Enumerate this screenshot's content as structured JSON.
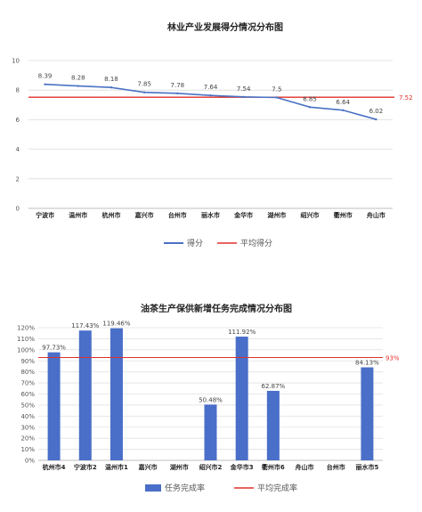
{
  "chart_data": [
    {
      "type": "line",
      "title": "林业产业发展得分情况分布图",
      "categories": [
        "宁波市",
        "温州市",
        "杭州市",
        "嘉兴市",
        "台州市",
        "丽水市",
        "金华市",
        "湖州市",
        "绍兴市",
        "衢州市",
        "舟山市"
      ],
      "series": [
        {
          "name": "得分",
          "values": [
            8.39,
            8.28,
            8.18,
            7.85,
            7.78,
            7.64,
            7.54,
            7.5,
            6.85,
            6.64,
            6.02
          ],
          "color": "#4a72c4"
        },
        {
          "name": "平均得分",
          "value": 7.52,
          "color": "#e0302a"
        }
      ],
      "ylim": [
        0,
        10
      ],
      "yticks": [
        "0",
        "2",
        "4",
        "6",
        "8",
        "10"
      ],
      "value_labels": [
        "8.39",
        "8.28",
        "8.18",
        "7.85",
        "7.78",
        "7.64",
        "7.54",
        "7.5",
        "6.85",
        "6.64",
        "6.02"
      ],
      "avg_label": "7.52",
      "grid": true,
      "legend": "bottom"
    },
    {
      "type": "bar",
      "title": "油茶生产保供新增任务完成情况分布图",
      "categories": [
        "杭州市4",
        "宁波市2",
        "温州市1",
        "嘉兴市",
        "湖州市",
        "绍兴市2",
        "金华市3",
        "衢州市6",
        "舟山市",
        "台州市",
        "丽水市5"
      ],
      "series": [
        {
          "name": "任务完成率",
          "values": [
            97.73,
            117.43,
            119.46,
            null,
            null,
            50.48,
            111.92,
            62.87,
            null,
            null,
            84.13
          ],
          "color": "#4a6fc9"
        },
        {
          "name": "平均完成率",
          "value": 93,
          "color": "#e0302a"
        }
      ],
      "ylim": [
        0,
        120
      ],
      "yticks": [
        "0%",
        "10%",
        "20%",
        "30%",
        "40%",
        "50%",
        "60%",
        "70%",
        "80%",
        "90%",
        "100%",
        "110%",
        "120%"
      ],
      "value_labels": [
        "97.73%",
        "117.43%",
        "119.46%",
        "",
        "",
        "50.48%",
        "111.92%",
        "62.87%",
        "",
        "",
        "84.13%"
      ],
      "avg_label": "93%",
      "grid": true,
      "legend": "bottom"
    }
  ]
}
